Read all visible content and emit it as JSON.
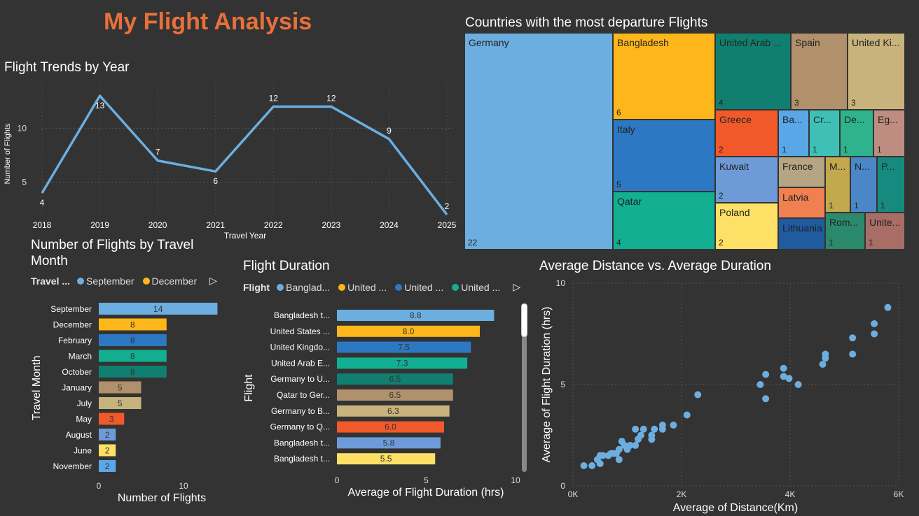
{
  "title": "My Flight Analysis",
  "colors": {
    "title": "#e8703a",
    "line": "#6caee0",
    "scatter": "#6caee0"
  },
  "line_chart": {
    "title": "Flight Trends by Year",
    "chart_data": {
      "type": "line",
      "x": [
        "2018",
        "2019",
        "2020",
        "2021",
        "2022",
        "2023",
        "2024",
        "2025"
      ],
      "values": [
        4,
        13,
        7,
        6,
        12,
        12,
        9,
        2
      ],
      "xlabel": "Travel Year",
      "ylabel": "Number of Flights",
      "yticks": [
        "5",
        "10"
      ],
      "ylim": [
        2,
        13
      ]
    }
  },
  "treemap": {
    "title": "Countries with the most departure Flights",
    "cells": [
      {
        "name": "Germany",
        "value": "22",
        "color": "#6caee0"
      },
      {
        "name": "Bangladesh",
        "value": "6",
        "color": "#fdb71a"
      },
      {
        "name": "Italy",
        "value": "5",
        "color": "#2d78c2"
      },
      {
        "name": "Qatar",
        "value": "4",
        "color": "#12af92"
      },
      {
        "name": "United Arab ...",
        "value": "4",
        "color": "#107f70"
      },
      {
        "name": "Spain",
        "value": "3",
        "color": "#b0916c"
      },
      {
        "name": "United Ki...",
        "value": "3",
        "color": "#c8b37c"
      },
      {
        "name": "Greece",
        "value": "2",
        "color": "#f2592a"
      },
      {
        "name": "Ba...",
        "value": "1",
        "color": "#5aa7e8"
      },
      {
        "name": "Cr...",
        "value": "1",
        "color": "#3fc0b6"
      },
      {
        "name": "De...",
        "value": "1",
        "color": "#2eb38d"
      },
      {
        "name": "Eg...",
        "value": "1",
        "color": "#be8c80"
      },
      {
        "name": "Kuwait",
        "value": "2",
        "color": "#6e9bd8"
      },
      {
        "name": "France",
        "value": "",
        "color": "#b6a582"
      },
      {
        "name": "M...",
        "value": "1",
        "color": "#c2a94c"
      },
      {
        "name": "N...",
        "value": "1",
        "color": "#4b87c8"
      },
      {
        "name": "P...",
        "value": "1",
        "color": "#178a7f"
      },
      {
        "name": "Latvia",
        "value": "",
        "color": "#f08050"
      },
      {
        "name": "Poland",
        "value": "2",
        "color": "#fde065"
      },
      {
        "name": "Lithuania",
        "value": "",
        "color": "#1f5b9e"
      },
      {
        "name": "Rom...",
        "value": "1",
        "color": "#2b8a6c"
      },
      {
        "name": "Unite...",
        "value": "1",
        "color": "#a86e66"
      }
    ]
  },
  "month_chart": {
    "title": "Number of Flights by Travel Month",
    "legend_label": "Travel ...",
    "legend": [
      {
        "name": "September",
        "color": "#6caee0"
      },
      {
        "name": "December",
        "color": "#fdb71a"
      }
    ],
    "chart_data": {
      "type": "bar",
      "orientation": "horizontal",
      "categories": [
        "September",
        "December",
        "February",
        "March",
        "October",
        "January",
        "July",
        "May",
        "August",
        "June",
        "November"
      ],
      "values": [
        14,
        8,
        8,
        8,
        8,
        5,
        5,
        3,
        2,
        2,
        2
      ],
      "colors": [
        "#6caee0",
        "#fdb71a",
        "#2d78c2",
        "#12af92",
        "#107f70",
        "#b0916c",
        "#c8b37c",
        "#f2592a",
        "#6e9bd8",
        "#fde065",
        "#5aa7e8"
      ],
      "xlabel": "Number of Flights",
      "ylabel": "Travel Month",
      "xticks": [
        "0",
        "10"
      ],
      "xlim": [
        0,
        15
      ]
    }
  },
  "duration_chart": {
    "title": "Flight Duration",
    "legend_label": "Flight",
    "legend": [
      {
        "name": "Banglad...",
        "color": "#6caee0"
      },
      {
        "name": "United ...",
        "color": "#fdb71a"
      },
      {
        "name": "United ...",
        "color": "#2d78c2"
      },
      {
        "name": "United ...",
        "color": "#12af92"
      }
    ],
    "chart_data": {
      "type": "bar",
      "orientation": "horizontal",
      "categories": [
        "Bangladesh t...",
        "United States ...",
        "United Kingdo...",
        "United Arab E...",
        "Germany to U...",
        "Qatar to Ger...",
        "Germany to B...",
        "Germany to Q...",
        "Bangladesh t...",
        "Bangladesh t..."
      ],
      "values": [
        8.8,
        8.0,
        7.5,
        7.3,
        6.5,
        6.5,
        6.3,
        6.0,
        5.8,
        5.5
      ],
      "labels": [
        "8.8",
        "8.0",
        "7.5",
        "7.3",
        "6.5",
        "6.5",
        "6.3",
        "6.0",
        "5.8",
        "5.5"
      ],
      "colors": [
        "#6caee0",
        "#fdb71a",
        "#2d78c2",
        "#12af92",
        "#107f70",
        "#b0916c",
        "#c8b37c",
        "#f2592a",
        "#6e9bd8",
        "#fde065"
      ],
      "xlabel": "Average of Flight Duration (hrs)",
      "ylabel": "Flight",
      "xticks": [
        "0",
        "5",
        "10"
      ],
      "xlim": [
        0,
        10
      ]
    }
  },
  "scatter_chart": {
    "title": "Average Distance vs. Average Duration",
    "chart_data": {
      "type": "scatter",
      "xlabel": "Average of Distance(Km)",
      "ylabel": "Average of Flight Duration (hrs)",
      "xticks": [
        "0K",
        "2K",
        "4K",
        "6K"
      ],
      "yticks": [
        "0",
        "5",
        "10"
      ],
      "xlim": [
        0,
        6000
      ],
      "ylim": [
        0,
        10
      ],
      "grid": true,
      "points": [
        [
          5800,
          8.8
        ],
        [
          5550,
          8.0
        ],
        [
          5550,
          7.5
        ],
        [
          5150,
          7.3
        ],
        [
          5150,
          6.5
        ],
        [
          4650,
          6.5
        ],
        [
          4650,
          6.3
        ],
        [
          4600,
          6.0
        ],
        [
          3550,
          5.5
        ],
        [
          3880,
          5.8
        ],
        [
          3880,
          5.4
        ],
        [
          3980,
          5.3
        ],
        [
          4150,
          5.0
        ],
        [
          3450,
          5.0
        ],
        [
          3550,
          4.3
        ],
        [
          2300,
          4.5
        ],
        [
          2100,
          3.5
        ],
        [
          1850,
          3.0
        ],
        [
          1650,
          3.0
        ],
        [
          1650,
          2.8
        ],
        [
          1500,
          2.8
        ],
        [
          1450,
          2.5
        ],
        [
          1450,
          2.3
        ],
        [
          1300,
          2.8
        ],
        [
          1250,
          2.5
        ],
        [
          1200,
          2.3
        ],
        [
          1150,
          2.8
        ],
        [
          1150,
          2.0
        ],
        [
          1050,
          2.0
        ],
        [
          1000,
          1.8
        ],
        [
          950,
          2.0
        ],
        [
          900,
          2.2
        ],
        [
          850,
          1.8
        ],
        [
          800,
          1.6
        ],
        [
          850,
          1.3
        ],
        [
          750,
          1.6
        ],
        [
          700,
          1.6
        ],
        [
          650,
          1.5
        ],
        [
          550,
          1.5
        ],
        [
          500,
          1.5
        ],
        [
          450,
          1.3
        ],
        [
          500,
          1.1
        ],
        [
          350,
          1.0
        ],
        [
          200,
          1.0
        ]
      ]
    }
  }
}
